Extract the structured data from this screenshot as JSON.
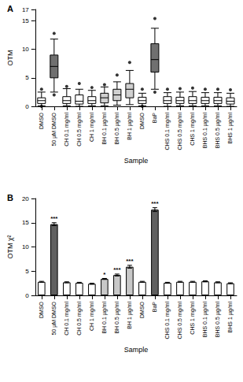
{
  "chart_data": [
    {
      "panel": "A",
      "type": "boxplot",
      "xlabel": "Sample",
      "ylabel": "OTM",
      "categories": [
        "DMSO",
        "50 µM DMSO",
        "CH 0.1 mg/ml",
        "CH 0.5 mg/ml",
        "CH 1 mg/ml",
        "BH 0.1 µg/ml",
        "BH 0.5 µg/ml",
        "BH 1 µg/ml",
        "DMSO",
        "BaP",
        "CHS 0.1 mg/ml",
        "CHS 0.5 mg/ml",
        "CHS 1 mg/ml",
        "BHS 0.1 µg/ml",
        "BHS 0.5 µg/ml",
        "BHS 1 µg/ml"
      ],
      "boxes": [
        [
          0.1,
          0.5,
          1.0,
          1.5,
          2.5
        ],
        [
          2.5,
          5.0,
          7.0,
          9.0,
          11.8
        ],
        [
          0.1,
          0.5,
          1.0,
          1.7,
          3.1
        ],
        [
          0.0,
          0.4,
          0.9,
          2.0,
          3.0
        ],
        [
          0.1,
          0.5,
          1.0,
          1.7,
          2.8
        ],
        [
          0.1,
          0.6,
          1.5,
          2.3,
          3.4
        ],
        [
          0.2,
          1.0,
          2.0,
          3.0,
          4.3
        ],
        [
          0.3,
          1.5,
          3.0,
          4.0,
          6.3
        ],
        [
          0.1,
          0.5,
          1.0,
          1.6,
          2.3
        ],
        [
          3.0,
          6.0,
          8.2,
          11.0,
          13.7
        ],
        [
          0.0,
          0.5,
          1.0,
          1.7,
          2.4
        ],
        [
          0.1,
          0.5,
          1.0,
          1.6,
          2.5
        ],
        [
          0.1,
          0.5,
          1.0,
          1.7,
          2.6
        ],
        [
          0.1,
          0.5,
          1.0,
          1.6,
          2.4
        ],
        [
          0.1,
          0.5,
          1.0,
          1.6,
          2.4
        ],
        [
          0.0,
          0.4,
          0.9,
          1.5,
          2.3
        ]
      ],
      "outliers": [
        [
          0.0,
          3.0
        ],
        [
          2.0,
          12.8
        ],
        [
          3.5
        ],
        [
          4.0
        ],
        [
          3.3
        ],
        [
          3.8
        ],
        [
          5.5
        ],
        [
          7.7
        ],
        [
          0.0,
          3.0
        ],
        [
          2.5,
          15.4
        ],
        [
          3.0
        ],
        [
          3.1
        ],
        [
          3.2
        ],
        [
          3.0
        ],
        [
          3.0
        ],
        [
          2.9
        ]
      ],
      "colors": [
        "#ffffff",
        "#707070",
        "#ffffff",
        "#ffffff",
        "#ffffff",
        "#d0d0d0",
        "#d0d0d0",
        "#d0d0d0",
        "#ffffff",
        "#707070",
        "#ffffff",
        "#ffffff",
        "#ffffff",
        "#ffffff",
        "#ffffff",
        "#ffffff"
      ],
      "ylim": [
        0,
        17
      ],
      "yticks": [
        0,
        5,
        10,
        15
      ],
      "grid": false
    },
    {
      "panel": "B",
      "type": "bar",
      "xlabel": "Sample",
      "ylabel": "OTM χ²",
      "categories": [
        "DMSO",
        "50 µM DMSO",
        "CH 0.1 mg/ml",
        "CH 0.5 mg/ml",
        "CH 1 mg/ml",
        "BH 0.1 µg/ml",
        "BH 0.5 µg/ml",
        "BH 1 µg/ml",
        "DMSO",
        "BaP",
        "CHS 0.1 mg/ml",
        "CHS 0.5 mg/ml",
        "CHS 1 mg/ml",
        "BHS 0.1 µg/ml",
        "BHS 0.5 µg/ml",
        "BHS 1 µg/ml"
      ],
      "values": [
        2.8,
        14.7,
        2.7,
        2.6,
        2.4,
        3.4,
        4.2,
        5.9,
        2.8,
        17.7,
        2.6,
        2.8,
        2.8,
        2.9,
        2.7,
        2.5
      ],
      "errors": [
        0.1,
        0.3,
        0.1,
        0.1,
        0.1,
        0.1,
        0.2,
        0.3,
        0.1,
        0.4,
        0.1,
        0.1,
        0.1,
        0.1,
        0.1,
        0.1
      ],
      "significance": [
        null,
        "***",
        null,
        null,
        null,
        "*",
        "***",
        "***",
        null,
        "***",
        null,
        null,
        null,
        null,
        null,
        null
      ],
      "colors": [
        "#ffffff",
        "#606060",
        "#ffffff",
        "#ffffff",
        "#ffffff",
        "#c8c8c8",
        "#c8c8c8",
        "#c8c8c8",
        "#ffffff",
        "#606060",
        "#ffffff",
        "#ffffff",
        "#ffffff",
        "#ffffff",
        "#ffffff",
        "#ffffff"
      ],
      "ylim": [
        0,
        20
      ],
      "yticks": [
        0,
        5,
        10,
        15,
        20
      ],
      "grid": false
    }
  ]
}
